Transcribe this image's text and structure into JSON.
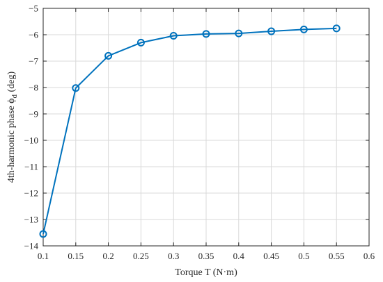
{
  "chart_data": {
    "type": "line",
    "title": "",
    "xlabel": "Torque T  (N·m)",
    "ylabel": {
      "main": "4th-harmonic phase ϕ",
      "subscript": "d",
      "unit": " (deg)"
    },
    "xlim": [
      0.1,
      0.6
    ],
    "ylim": [
      -14,
      -5
    ],
    "xticks": [
      0.1,
      0.15,
      0.2,
      0.25,
      0.3,
      0.35,
      0.4,
      0.45,
      0.5,
      0.55,
      0.6
    ],
    "xtick_labels": [
      "0.1",
      "0.15",
      "0.2",
      "0.25",
      "0.3",
      "0.35",
      "0.4",
      "0.45",
      "0.5",
      "0.55",
      "0.6"
    ],
    "yticks": [
      -14,
      -13,
      -12,
      -11,
      -10,
      -9,
      -8,
      -7,
      -6,
      -5
    ],
    "ytick_labels": [
      "−14",
      "−13",
      "−12",
      "−11",
      "−10",
      "−9",
      "−8",
      "−7",
      "−6",
      "−5"
    ],
    "grid": true,
    "legend": "none",
    "series": [
      {
        "marker": "circle",
        "color": "#0072BD",
        "x": [
          0.1,
          0.15,
          0.2,
          0.25,
          0.3,
          0.35,
          0.4,
          0.45,
          0.5,
          0.55
        ],
        "y": [
          -13.55,
          -8.02,
          -6.8,
          -6.3,
          -6.04,
          -5.97,
          -5.95,
          -5.87,
          -5.8,
          -5.76
        ]
      }
    ]
  }
}
